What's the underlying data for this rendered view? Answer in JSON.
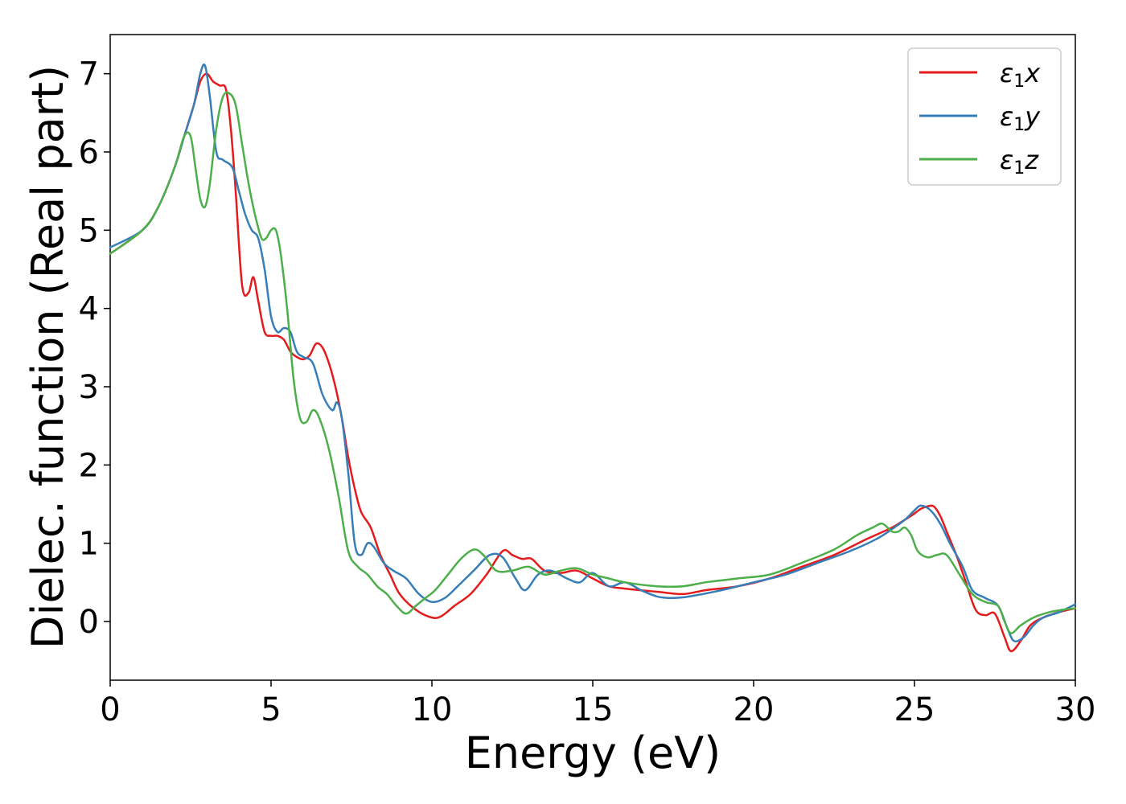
{
  "chart_data": {
    "type": "line",
    "xlabel": "Energy (eV)",
    "ylabel": "Dielec. function (Real part)",
    "xlim": [
      0,
      30
    ],
    "ylim": [
      -0.75,
      7.5
    ],
    "xticks": [
      0,
      5,
      10,
      15,
      20,
      25,
      30
    ],
    "yticks": [
      0,
      1,
      2,
      3,
      4,
      5,
      6,
      7
    ],
    "grid": false,
    "legend_position": "top-right",
    "series": [
      {
        "name": "ε₁x",
        "legend": {
          "base": "ε",
          "sub": "1",
          "suffix": "x"
        },
        "color": "#e41a1c",
        "x": [
          0,
          1,
          1.5,
          2,
          2.3,
          2.6,
          2.8,
          3.0,
          3.2,
          3.4,
          3.6,
          3.75,
          3.9,
          4.1,
          4.3,
          4.45,
          4.6,
          4.8,
          5.0,
          5.2,
          5.4,
          5.6,
          5.8,
          6.0,
          6.2,
          6.4,
          6.6,
          6.8,
          7.0,
          7.2,
          7.4,
          7.6,
          7.8,
          8.1,
          8.4,
          8.7,
          9.0,
          9.5,
          10.0,
          10.3,
          10.7,
          11.2,
          11.7,
          12.2,
          12.5,
          12.8,
          13.1,
          13.5,
          14.0,
          14.5,
          15.0,
          15.5,
          16,
          17,
          17.8,
          18.5,
          19.5,
          20.5,
          21.5,
          22.5,
          23.5,
          24.3,
          24.7,
          25.0,
          25.2,
          25.4,
          25.6,
          25.8,
          26.0,
          26.3,
          26.6,
          26.9,
          27.2,
          27.5,
          27.8,
          28.0,
          28.3,
          28.6,
          29,
          29.5,
          30
        ],
        "y": [
          4.7,
          5.0,
          5.3,
          5.8,
          6.2,
          6.6,
          6.9,
          7.0,
          6.9,
          6.85,
          6.8,
          6.3,
          5.5,
          4.3,
          4.2,
          4.4,
          4.1,
          3.7,
          3.65,
          3.65,
          3.6,
          3.45,
          3.38,
          3.35,
          3.4,
          3.55,
          3.5,
          3.3,
          3.0,
          2.6,
          2.1,
          1.7,
          1.4,
          1.2,
          0.85,
          0.6,
          0.35,
          0.15,
          0.05,
          0.07,
          0.2,
          0.35,
          0.6,
          0.9,
          0.85,
          0.8,
          0.8,
          0.65,
          0.62,
          0.65,
          0.55,
          0.45,
          0.42,
          0.38,
          0.35,
          0.4,
          0.45,
          0.55,
          0.7,
          0.85,
          1.05,
          1.2,
          1.3,
          1.38,
          1.44,
          1.47,
          1.47,
          1.35,
          1.15,
          0.85,
          0.5,
          0.15,
          0.08,
          0.1,
          -0.2,
          -0.38,
          -0.25,
          -0.05,
          0.05,
          0.12,
          0.17
        ]
      },
      {
        "name": "ε₁y",
        "legend": {
          "base": "ε",
          "sub": "1",
          "suffix": "y"
        },
        "color": "#377eb8",
        "x": [
          0,
          1,
          1.5,
          2,
          2.3,
          2.6,
          2.8,
          2.95,
          3.1,
          3.3,
          3.5,
          3.8,
          4.0,
          4.2,
          4.4,
          4.6,
          4.8,
          5.0,
          5.2,
          5.4,
          5.6,
          5.8,
          6.0,
          6.3,
          6.6,
          6.9,
          7.05,
          7.2,
          7.4,
          7.6,
          7.8,
          8.0,
          8.2,
          8.5,
          8.8,
          9.2,
          9.6,
          10.0,
          10.4,
          10.8,
          11.3,
          11.8,
          12.2,
          12.6,
          12.9,
          13.3,
          13.7,
          14.2,
          14.6,
          15.0,
          15.5,
          16,
          16.5,
          17,
          17.5,
          18,
          19,
          20,
          21,
          22,
          23,
          23.8,
          24.3,
          24.7,
          25.0,
          25.2,
          25.5,
          25.8,
          26.1,
          26.5,
          26.8,
          27.2,
          27.6,
          27.9,
          28.1,
          28.4,
          28.7,
          29,
          29.5,
          30
        ],
        "y": [
          4.78,
          5.0,
          5.3,
          5.8,
          6.2,
          6.6,
          7.0,
          7.1,
          6.7,
          6.0,
          5.9,
          5.8,
          5.5,
          5.2,
          5.0,
          4.9,
          4.5,
          3.9,
          3.7,
          3.75,
          3.7,
          3.45,
          3.38,
          3.3,
          2.9,
          2.7,
          2.8,
          2.6,
          1.9,
          1.0,
          0.85,
          1.0,
          0.95,
          0.75,
          0.65,
          0.55,
          0.35,
          0.25,
          0.3,
          0.45,
          0.65,
          0.85,
          0.82,
          0.55,
          0.4,
          0.6,
          0.65,
          0.55,
          0.5,
          0.62,
          0.45,
          0.5,
          0.4,
          0.32,
          0.3,
          0.32,
          0.4,
          0.5,
          0.6,
          0.75,
          0.9,
          1.05,
          1.18,
          1.3,
          1.42,
          1.48,
          1.42,
          1.25,
          1.0,
          0.7,
          0.4,
          0.3,
          0.2,
          -0.1,
          -0.25,
          -0.2,
          -0.05,
          0.05,
          0.12,
          0.22
        ]
      },
      {
        "name": "ε₁z",
        "legend": {
          "base": "ε",
          "sub": "1",
          "suffix": "z"
        },
        "color": "#4daf4a",
        "x": [
          0,
          1,
          1.5,
          2,
          2.3,
          2.5,
          2.65,
          2.8,
          2.95,
          3.1,
          3.3,
          3.5,
          3.7,
          3.9,
          4.1,
          4.3,
          4.5,
          4.7,
          4.85,
          5.0,
          5.15,
          5.3,
          5.5,
          5.7,
          5.9,
          6.1,
          6.3,
          6.5,
          6.8,
          7.1,
          7.4,
          7.7,
          8.0,
          8.3,
          8.6,
          8.9,
          9.2,
          9.5,
          9.8,
          10.1,
          10.5,
          10.9,
          11.3,
          11.6,
          12.0,
          12.5,
          13.0,
          13.5,
          14.0,
          14.5,
          15.0,
          15.5,
          16,
          17,
          17.8,
          18.5,
          19.5,
          20.5,
          21.5,
          22.5,
          23.2,
          23.7,
          24.0,
          24.3,
          24.5,
          24.7,
          24.9,
          25.1,
          25.4,
          25.7,
          26.0,
          26.4,
          26.8,
          27.2,
          27.6,
          27.8,
          28.0,
          28.3,
          28.7,
          29.2,
          29.6,
          30
        ],
        "y": [
          4.7,
          5.0,
          5.3,
          5.8,
          6.2,
          6.2,
          5.8,
          5.4,
          5.3,
          5.6,
          6.3,
          6.7,
          6.75,
          6.6,
          6.1,
          5.6,
          5.2,
          4.9,
          4.9,
          5.0,
          5.0,
          4.7,
          4.0,
          3.1,
          2.6,
          2.55,
          2.7,
          2.6,
          2.2,
          1.6,
          0.9,
          0.7,
          0.6,
          0.45,
          0.35,
          0.2,
          0.1,
          0.2,
          0.3,
          0.4,
          0.6,
          0.8,
          0.92,
          0.85,
          0.65,
          0.65,
          0.7,
          0.6,
          0.65,
          0.68,
          0.6,
          0.55,
          0.5,
          0.45,
          0.45,
          0.5,
          0.55,
          0.6,
          0.75,
          0.92,
          1.1,
          1.2,
          1.25,
          1.15,
          1.15,
          1.2,
          1.1,
          0.9,
          0.82,
          0.85,
          0.85,
          0.6,
          0.35,
          0.25,
          0.2,
          0.0,
          -0.15,
          -0.05,
          0.05,
          0.12,
          0.15,
          0.17
        ]
      }
    ]
  }
}
